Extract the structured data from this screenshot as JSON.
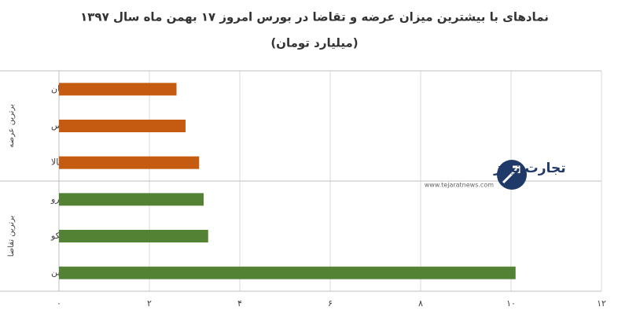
{
  "chart_data": {
    "type": "hbar",
    "title": "نمادهای با بیشترین میزان عرضه و تقاضا در بورس امروز ۱۷ بهمن ماه سال ۱۳۹۷",
    "subtitle": "(میلیارد تومان)",
    "categories": [
      "کیان",
      "حفارس",
      "کالا",
      "وپترو",
      "رتکو",
      "شکربن"
    ],
    "series": [
      {
        "name": "برترین عرضه",
        "color": "#c55a11",
        "values": [
          2.6,
          2.8,
          3.1,
          null,
          null,
          null
        ]
      },
      {
        "name": "برترین تقاضا",
        "color": "#548235",
        "values": [
          null,
          null,
          null,
          3.2,
          3.3,
          10.1
        ]
      }
    ],
    "xlim": [
      0,
      12
    ],
    "xticks": [
      {
        "value": 0,
        "label": "۰"
      },
      {
        "value": 2,
        "label": "۲"
      },
      {
        "value": 4,
        "label": "۴"
      },
      {
        "value": 6,
        "label": "۶"
      },
      {
        "value": 8,
        "label": "۸"
      },
      {
        "value": 10,
        "label": "۱۰"
      },
      {
        "value": 12,
        "label": "۱۲"
      }
    ],
    "grid": true,
    "watermark": {
      "name": "تجارت نیوز",
      "url": "www.tejaratnews.com"
    }
  }
}
